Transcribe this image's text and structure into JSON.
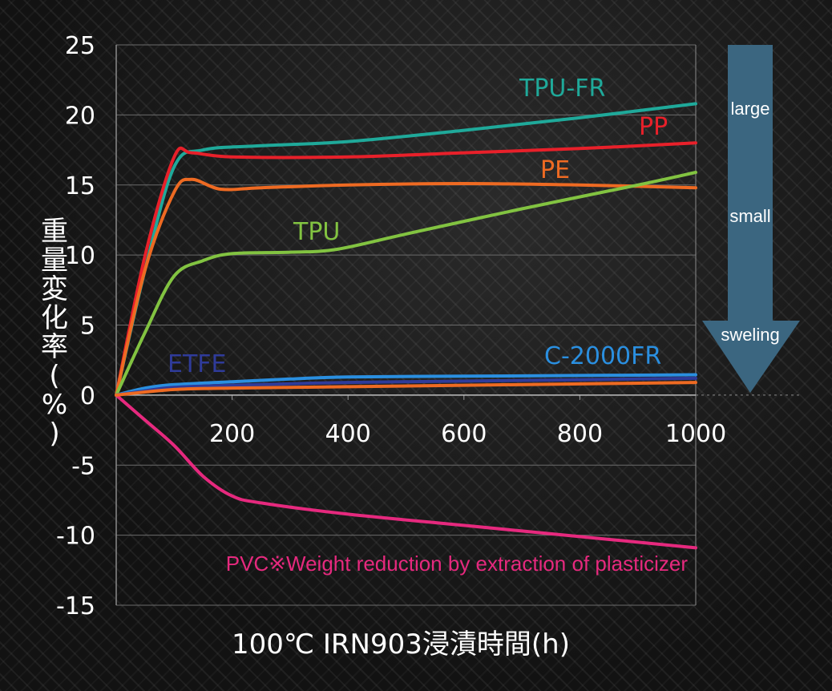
{
  "chart_data": {
    "type": "line",
    "xlabel": "100℃ IRN903浸漬時間(h)",
    "ylabel": "重量変化率(%)",
    "xlim": [
      0,
      1000
    ],
    "ylim": [
      -15,
      25
    ],
    "x_ticks": [
      200,
      400,
      600,
      800,
      1000
    ],
    "y_ticks": [
      25,
      20,
      15,
      10,
      5,
      0,
      -5,
      -10,
      -15
    ],
    "grid": true,
    "series": [
      {
        "name": "TPU-FR",
        "color": "#1fa99a",
        "x": [
          0,
          50,
          100,
          150,
          250,
          400,
          600,
          800,
          1000
        ],
        "y": [
          0,
          9,
          16.3,
          17.5,
          17.8,
          18.1,
          18.9,
          19.8,
          20.8
        ]
      },
      {
        "name": "PP",
        "color": "#e8202a",
        "x": [
          0,
          50,
          100,
          130,
          200,
          400,
          600,
          800,
          1000
        ],
        "y": [
          0,
          10,
          17.0,
          17.3,
          17.0,
          17.0,
          17.3,
          17.6,
          18.0
        ]
      },
      {
        "name": "PE",
        "color": "#ee6a22",
        "x": [
          0,
          50,
          100,
          130,
          180,
          250,
          400,
          600,
          800,
          1000
        ],
        "y": [
          0,
          9,
          14.5,
          15.4,
          14.7,
          14.8,
          15.0,
          15.1,
          15.0,
          14.8
        ]
      },
      {
        "name": "TPU",
        "color": "#82c341",
        "x": [
          0,
          50,
          100,
          150,
          200,
          300,
          380,
          500,
          700,
          900,
          1000
        ],
        "y": [
          0,
          4.5,
          8.5,
          9.6,
          10.1,
          10.2,
          10.4,
          11.5,
          13.3,
          15.0,
          15.9
        ]
      },
      {
        "name": "C-2000FR",
        "color": "#2a8fe0",
        "x": [
          0,
          50,
          100,
          200,
          300,
          400,
          600,
          800,
          1000
        ],
        "y": [
          0,
          0.5,
          0.75,
          0.95,
          1.15,
          1.3,
          1.35,
          1.4,
          1.45
        ]
      },
      {
        "name": "ETFE",
        "color": "#2f3b9a",
        "x": [
          0,
          50,
          100,
          200,
          400,
          600,
          800,
          1000
        ],
        "y": [
          0,
          0.3,
          0.55,
          0.7,
          0.9,
          1.0,
          1.1,
          1.2
        ]
      },
      {
        "name": "PVC※Weight reduction by extraction of plasticizer",
        "color": "#e6297e",
        "x": [
          0,
          50,
          100,
          150,
          200,
          250,
          400,
          600,
          800,
          1000
        ],
        "y": [
          0,
          -1.8,
          -3.6,
          -5.8,
          -7.2,
          -7.7,
          -8.5,
          -9.3,
          -10.1,
          -10.9
        ]
      },
      {
        "name": "",
        "color": "#ee6a22",
        "x": [
          0,
          100,
          200,
          400,
          600,
          800,
          1000
        ],
        "y": [
          0,
          0.4,
          0.5,
          0.6,
          0.7,
          0.8,
          0.9
        ]
      }
    ],
    "labels": {
      "tpu_fr": "TPU-FR",
      "pp": "PP",
      "pe": "PE",
      "tpu": "TPU",
      "etfe": "ETFE",
      "c2000fr": "C-2000FR",
      "pvc": "PVC※Weight reduction by extraction of plasticizer"
    }
  },
  "arrow": {
    "color": "#3b6680",
    "top_label": "large",
    "mid_label": "small",
    "bottom_label": "sweling"
  },
  "colors": {
    "tpu_fr": "#1fa99a",
    "pp": "#e8202a",
    "pe": "#ee6a22",
    "tpu": "#82c341",
    "etfe": "#2f3b9a",
    "c2000fr": "#2a8fe0",
    "pvc": "#e6297e"
  }
}
